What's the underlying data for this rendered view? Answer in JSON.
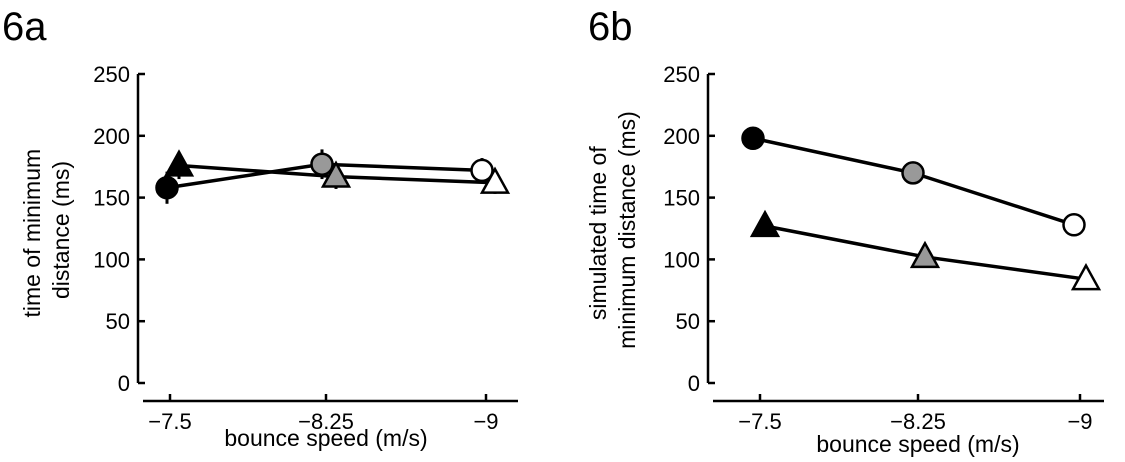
{
  "chart_data": [
    {
      "panel_label": "6a",
      "type": "line",
      "xlabel": "bounce speed (m/s)",
      "ylabel": [
        "time of minimum",
        "distance (ms)"
      ],
      "categories": [
        "−7.5",
        "−8.25",
        "−9"
      ],
      "ylim": [
        0,
        250
      ],
      "yticks": [
        0,
        50,
        100,
        150,
        200,
        250
      ],
      "grid": false,
      "series": [
        {
          "marker": "circle",
          "values": [
            158,
            177,
            172
          ],
          "errors": [
            13,
            12,
            10
          ],
          "fills": [
            "#000000",
            "#999999",
            "#ffffff"
          ]
        },
        {
          "marker": "triangle",
          "values": [
            176,
            167,
            162
          ],
          "errors": [
            11,
            10,
            9
          ],
          "fills": [
            "#000000",
            "#999999",
            "#ffffff"
          ]
        }
      ]
    },
    {
      "panel_label": "6b",
      "type": "line",
      "xlabel": "bounce speed (m/s)",
      "ylabel": [
        "simulated time of",
        "minimum distance (ms)"
      ],
      "categories": [
        "−7.5",
        "−8.25",
        "−9"
      ],
      "ylim": [
        0,
        250
      ],
      "yticks": [
        0,
        50,
        100,
        150,
        200,
        250
      ],
      "grid": false,
      "series": [
        {
          "marker": "circle",
          "values": [
            198,
            170,
            128
          ],
          "errors": [
            0,
            0,
            0
          ],
          "fills": [
            "#000000",
            "#999999",
            "#ffffff"
          ]
        },
        {
          "marker": "triangle",
          "values": [
            127,
            102,
            84
          ],
          "errors": [
            0,
            0,
            0
          ],
          "fills": [
            "#000000",
            "#999999",
            "#ffffff"
          ]
        }
      ]
    }
  ]
}
